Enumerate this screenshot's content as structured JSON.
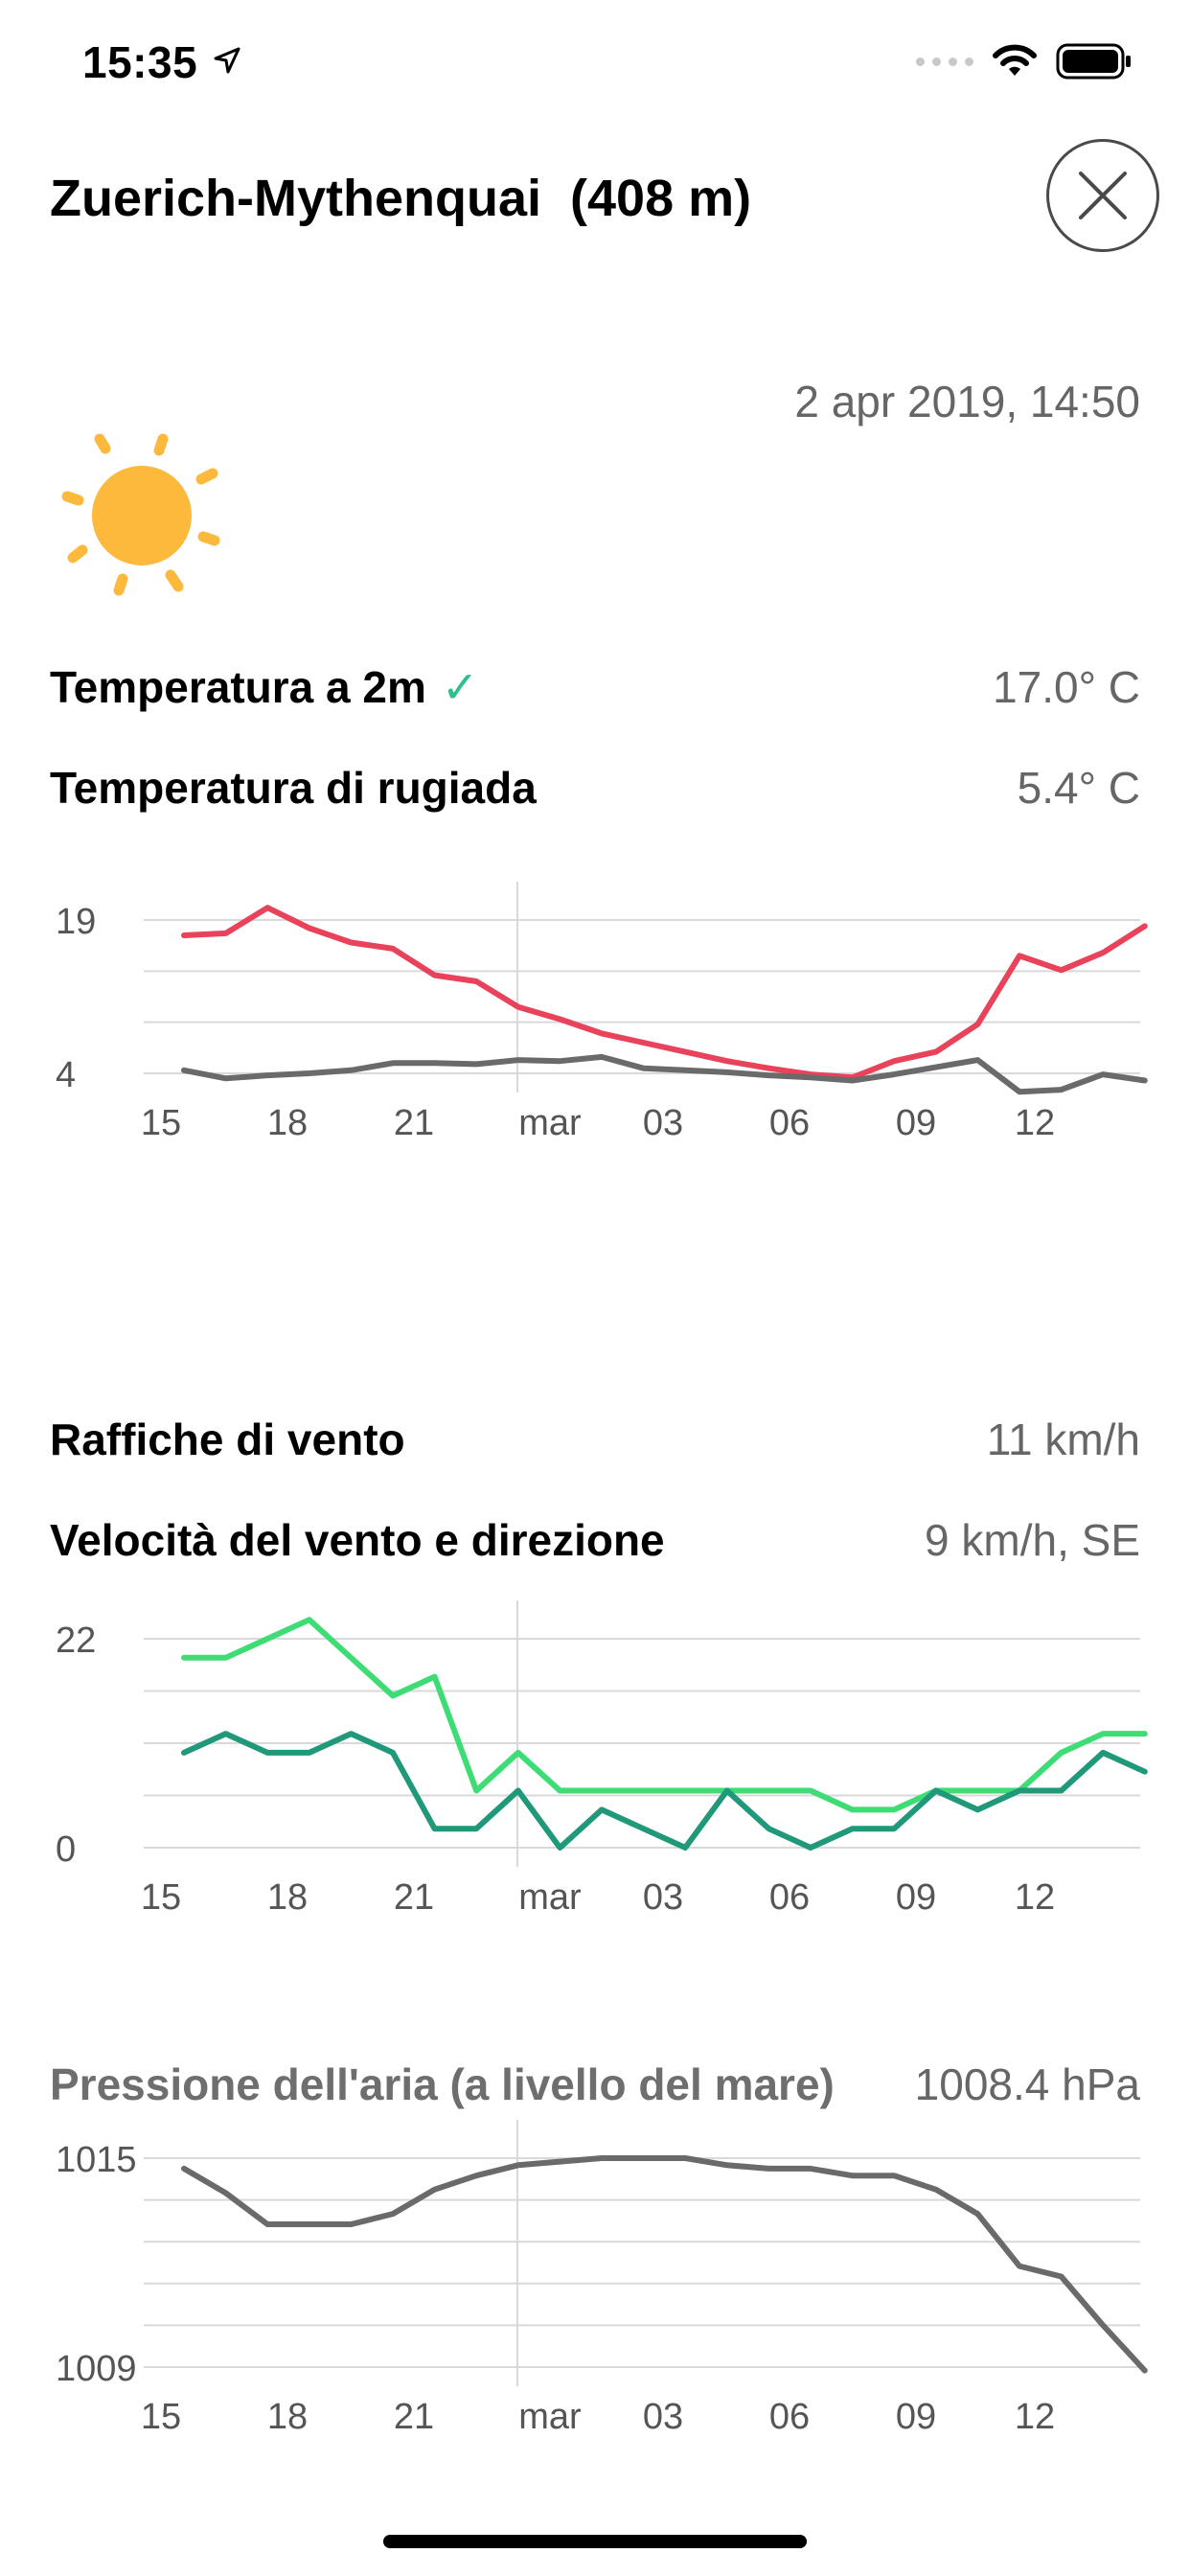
{
  "status_bar": {
    "time": "15:35"
  },
  "header": {
    "title": "Zuerich-Mythenquai  (408 m)"
  },
  "observation": {
    "datetime": "2 apr 2019, 14:50",
    "weather_icon": "sun-icon"
  },
  "temperature": {
    "temp_label": "Temperatura a 2m",
    "check": "✓",
    "temp_value": "17.0° C",
    "dew_label": "Temperatura di rugiada",
    "dew_value": "5.4° C"
  },
  "wind": {
    "gust_label": "Raffiche di vento",
    "gust_value": "11 km/h",
    "speed_label": "Velocità del vento e direzione",
    "speed_value": "9 km/h, SE"
  },
  "pressure": {
    "label": "Pressione dell'aria (a livello del mare)",
    "value": "1008.4 hPa"
  },
  "chart_data": [
    {
      "type": "line",
      "x_tick_labels": [
        "15",
        "18",
        "21",
        "mar",
        "03",
        "06",
        "09",
        "12"
      ],
      "y_tick_labels": [
        "19",
        "4"
      ],
      "ylim": [
        4,
        19
      ],
      "grid": true,
      "colors": [
        "#e8435a",
        "#6a6a6a"
      ],
      "series": [
        {
          "values": [
            17.5,
            17.7,
            20.2,
            18.2,
            16.8,
            16.2,
            13.6,
            13.0,
            10.5,
            9.3,
            7.9,
            7.0,
            6.1,
            5.2,
            4.5,
            3.9,
            3.6,
            5.2,
            6.1,
            8.8,
            15.5,
            14.1,
            15.8,
            18.4
          ]
        },
        {
          "values": [
            4.3,
            3.5,
            3.8,
            4.0,
            4.3,
            5.0,
            5.0,
            4.9,
            5.3,
            5.2,
            5.6,
            4.5,
            4.3,
            4.1,
            3.8,
            3.6,
            3.3,
            3.9,
            4.6,
            5.3,
            2.2,
            2.4,
            3.9,
            3.3
          ]
        }
      ]
    },
    {
      "type": "line",
      "x_tick_labels": [
        "15",
        "18",
        "21",
        "mar",
        "03",
        "06",
        "09",
        "12"
      ],
      "y_tick_labels": [
        "22",
        "0"
      ],
      "ylim": [
        0,
        22
      ],
      "grid": true,
      "colors": [
        "#3ddc74",
        "#20987a"
      ],
      "series": [
        {
          "values": [
            20,
            20,
            22,
            24,
            20,
            16,
            18,
            6,
            10,
            6,
            6,
            6,
            6,
            6,
            6,
            6,
            4,
            4,
            6,
            6,
            6,
            10,
            12,
            12
          ]
        },
        {
          "values": [
            10,
            12,
            10,
            10,
            12,
            10,
            2,
            2,
            6,
            0,
            4,
            2,
            0,
            6,
            2,
            0,
            2,
            2,
            6,
            4,
            6,
            6,
            10,
            8
          ]
        }
      ]
    },
    {
      "type": "line",
      "x_tick_labels": [
        "15",
        "18",
        "21",
        "mar",
        "03",
        "06",
        "09",
        "12"
      ],
      "y_tick_labels": [
        "1015",
        "1009"
      ],
      "ylim": [
        1009,
        1015
      ],
      "grid": true,
      "colors": [
        "#6a6a6a"
      ],
      "series": [
        {
          "values": [
            1014.7,
            1014.0,
            1013.1,
            1013.1,
            1013.1,
            1013.4,
            1014.1,
            1014.5,
            1014.8,
            1014.9,
            1015.0,
            1015.0,
            1015.0,
            1014.8,
            1014.7,
            1014.7,
            1014.5,
            1014.5,
            1014.1,
            1013.4,
            1011.9,
            1011.6,
            1010.2,
            1008.9
          ]
        }
      ]
    }
  ]
}
